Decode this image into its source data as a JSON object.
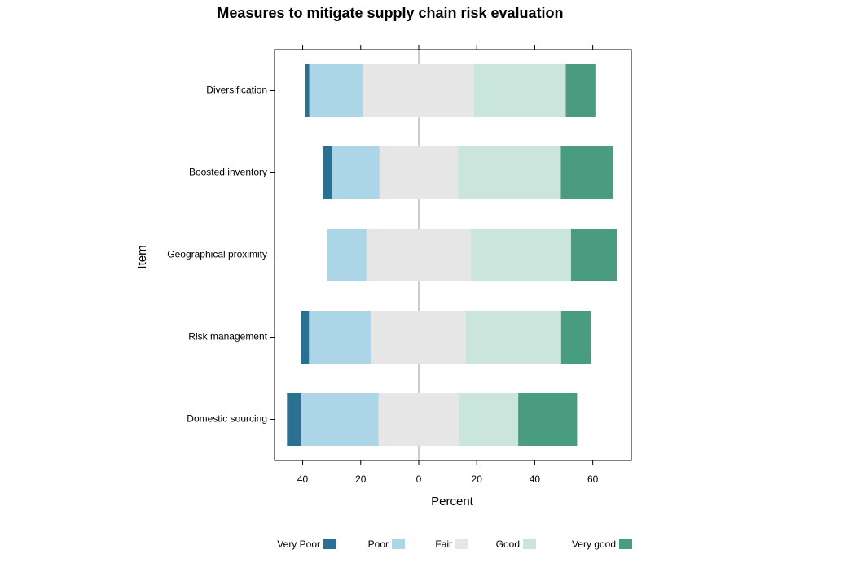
{
  "chart_data": {
    "type": "diverging_bar",
    "title": "Measures to mitigate supply chain risk evaluation",
    "x_label": "Percent",
    "y_label": "Item",
    "categories": [
      "Diversification",
      "Boosted inventory",
      "Geographical proximity",
      "Risk management",
      "Domestic sourcing"
    ],
    "series": [
      {
        "name": "Very Poor",
        "color": "#2a7090",
        "values": [
          1.4,
          3,
          0,
          2.8,
          5
        ]
      },
      {
        "name": "Poor",
        "color": "#acd5e8",
        "values": [
          18.6,
          16.5,
          13.5,
          21.5,
          26.5
        ]
      },
      {
        "name": "Fair",
        "color": "#e6e6e6",
        "values": [
          38.2,
          27,
          36,
          32.6,
          27.8
        ]
      },
      {
        "name": "Good",
        "color": "#c9e5dc",
        "values": [
          31.6,
          35.5,
          34.5,
          32.8,
          20.4
        ]
      },
      {
        "name": "Very good",
        "color": "#4a9c80",
        "values": [
          10.2,
          18,
          16,
          10.3,
          20.3
        ]
      }
    ],
    "xlim": [
      -49.7,
      73.3
    ],
    "xticks": [
      {
        "value": -40,
        "label": "40"
      },
      {
        "value": -20,
        "label": "20"
      },
      0,
      20,
      40,
      60
    ]
  }
}
